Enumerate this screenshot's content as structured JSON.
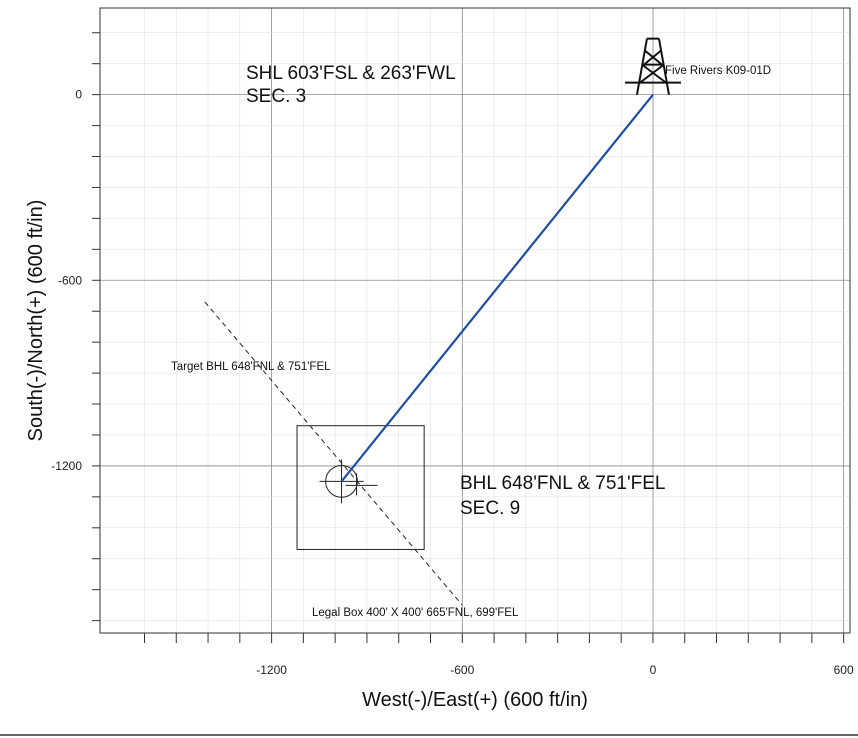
{
  "chart_data": {
    "type": "scatter",
    "xlabel": "West(-)/East(+) (600 ft/in)",
    "ylabel": "South(-)/North(+) (600 ft/in)",
    "xlim": [
      -1740,
      620
    ],
    "ylim": [
      -1740,
      280
    ],
    "x_ticks": [
      {
        "value": -1200,
        "label": "-1200"
      },
      {
        "value": -600,
        "label": "-600"
      },
      {
        "value": 0,
        "label": "0"
      },
      {
        "value": 600,
        "label": "600"
      }
    ],
    "y_ticks": [
      {
        "value": 0,
        "label": "0"
      },
      {
        "value": -600,
        "label": "-600"
      },
      {
        "value": -1200,
        "label": "-1200"
      }
    ],
    "grid": true,
    "well_path": {
      "name": "Five Rivers K09-01D",
      "points": [
        [
          0,
          0
        ],
        [
          -980,
          -1250
        ]
      ],
      "color": "#1f4ea8"
    },
    "target": {
      "x": -980,
      "y": -1250,
      "label": "Target BHL 648'FNL & 751'FEL",
      "radius": 50
    },
    "legal_box": {
      "x_min": -1120,
      "x_max": -720,
      "y_min": -1470,
      "y_max": -1070,
      "label": "Legal Box 400' X 400' 665'FNL, 699'FEL"
    },
    "annotations": {
      "shl_line1": "SHL 603'FSL & 263'FWL",
      "shl_line2": "SEC. 3",
      "bhl_line1": "BHL 648'FNL & 751'FEL",
      "bhl_line2": "SEC. 9",
      "rig_label": "Five Rivers K09-01D"
    }
  }
}
